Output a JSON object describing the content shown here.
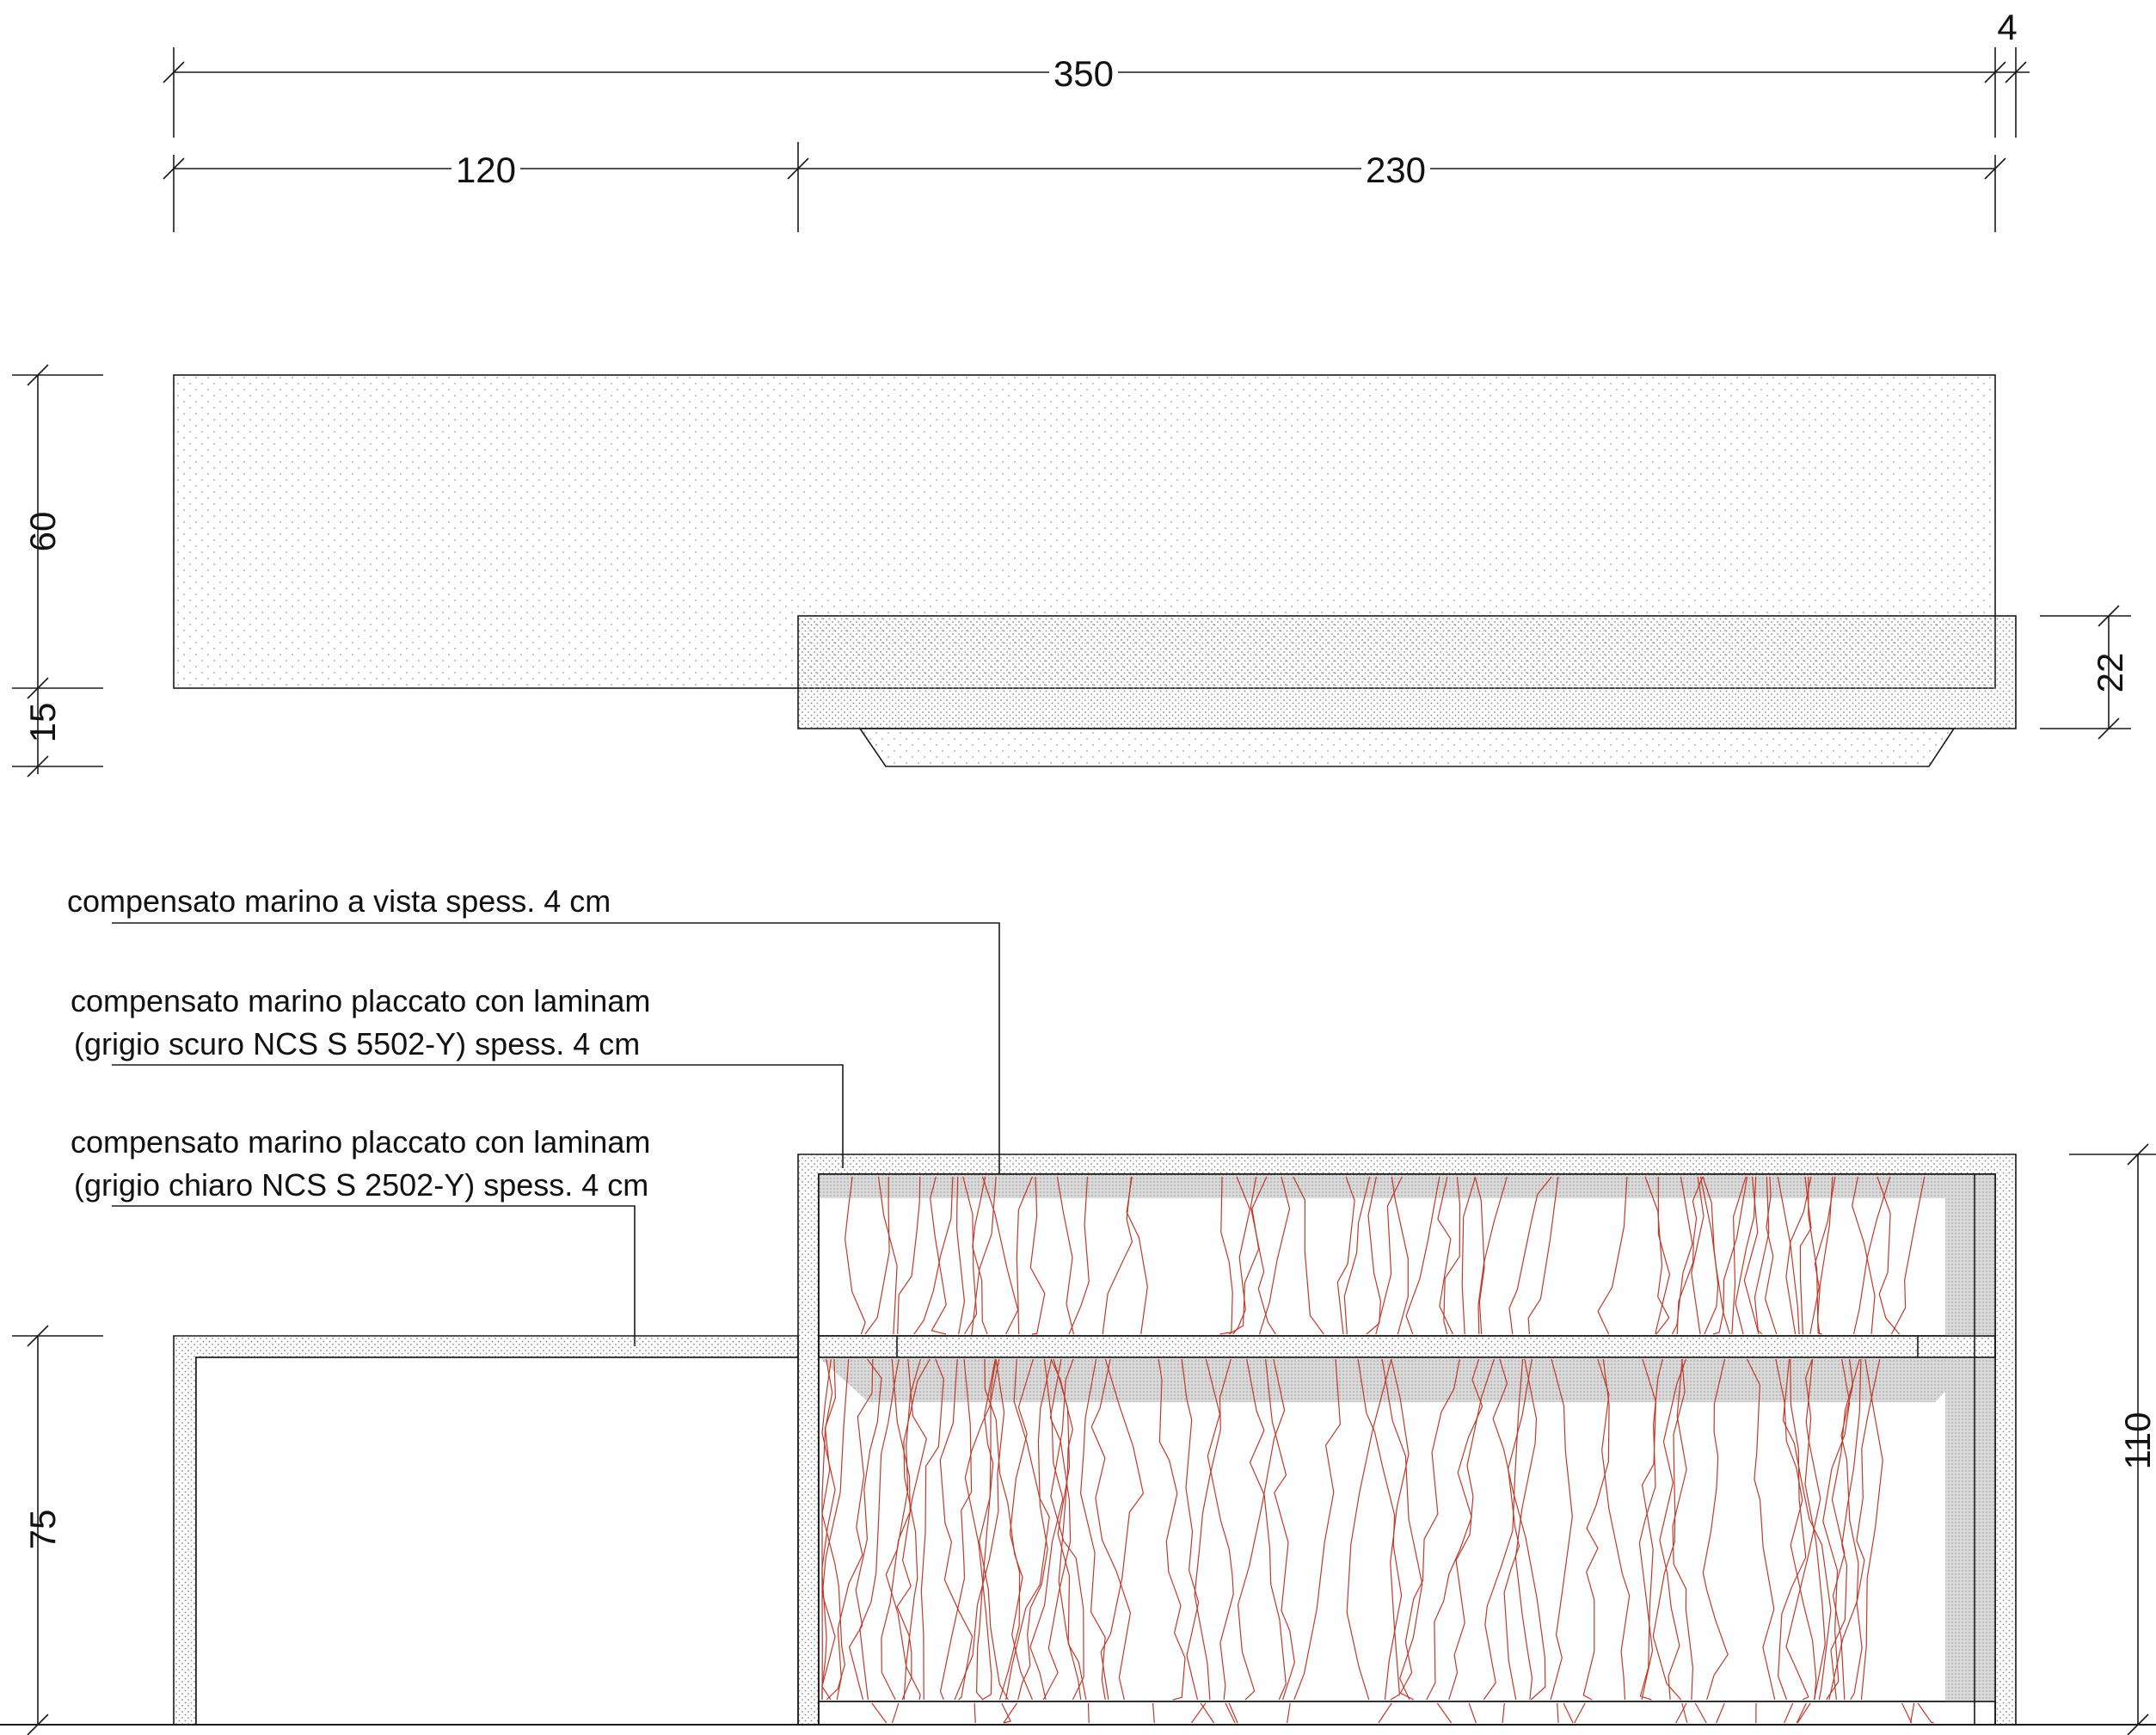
{
  "dimensions": {
    "total_width": "350",
    "overhang": "4",
    "left_part": "120",
    "right_part": "230",
    "top_depth": "60",
    "top_offset": "15",
    "island_thickness": "22",
    "table_height": "75",
    "island_height": "110"
  },
  "notes": {
    "note1_line1": "compensato marino a vista spess. 4 cm",
    "note2_line1": "compensato marino placcato con laminam",
    "note2_line2": "(grigio scuro NCS S 5502-Y) spess. 4 cm",
    "note3_line1": "compensato marino placcato con laminam",
    "note3_line2": "(grigio chiaro NCS S 2502-Y) spess. 4 cm"
  },
  "colors": {
    "line": "#1a1a1a",
    "wood_grain": "#c0392b",
    "dark_fill": "#d6d6d6",
    "light_fill": "#f4f4f4"
  }
}
